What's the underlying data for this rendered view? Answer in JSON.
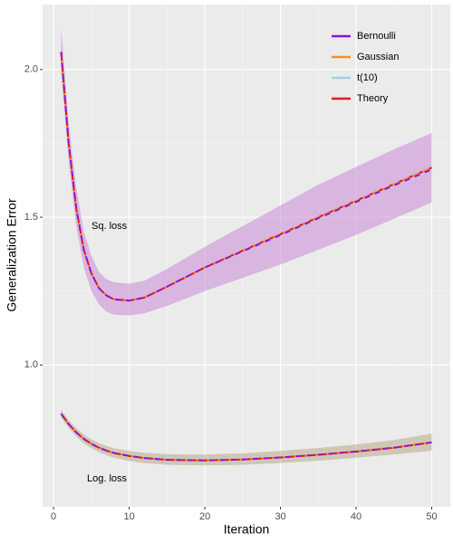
{
  "chart_data": {
    "type": "line",
    "xlabel": "Iteration",
    "ylabel": "Generalization Error",
    "xlim": [
      -1.45,
      52.45
    ],
    "ylim": [
      0.52,
      2.22
    ],
    "xticks": [
      0,
      10,
      20,
      30,
      40,
      50
    ],
    "yticks": [
      {
        "value": 1.0,
        "label": "1.0"
      },
      {
        "value": 1.5,
        "label": "1.5"
      },
      {
        "value": 2.0,
        "label": "2.0"
      }
    ],
    "grid": true,
    "legend_position": "top-right",
    "series": [
      {
        "name": "Bernoulli",
        "color": "#8a12e0",
        "dashed": true
      },
      {
        "name": "Gaussian",
        "color": "#f28e2b",
        "dashed": false
      },
      {
        "name": "t(10)",
        "color": "#9fd3e6",
        "dashed": false
      },
      {
        "name": "Theory",
        "color": "#e31a1c",
        "dashed": true
      }
    ],
    "x": [
      1,
      2,
      3,
      4,
      5,
      6,
      7,
      8,
      10,
      12,
      15,
      20,
      25,
      30,
      35,
      40,
      45,
      50
    ],
    "curves": [
      {
        "label": "Sq. loss",
        "band_color": "#c98bd6",
        "lower": [
          1.99,
          1.69,
          1.47,
          1.33,
          1.25,
          1.205,
          1.18,
          1.17,
          1.168,
          1.175,
          1.2,
          1.25,
          1.295,
          1.34,
          1.39,
          1.44,
          1.495,
          1.55
        ],
        "upper": [
          2.14,
          1.82,
          1.6,
          1.45,
          1.37,
          1.315,
          1.29,
          1.28,
          1.275,
          1.285,
          1.325,
          1.4,
          1.47,
          1.54,
          1.61,
          1.67,
          1.73,
          1.785
        ],
        "lines": [
          [
            2.06,
            1.75,
            1.53,
            1.39,
            1.31,
            1.26,
            1.235,
            1.222,
            1.218,
            1.228,
            1.265,
            1.33,
            1.385,
            1.44,
            1.497,
            1.552,
            1.608,
            1.662
          ],
          [
            2.06,
            1.75,
            1.53,
            1.39,
            1.31,
            1.26,
            1.235,
            1.222,
            1.218,
            1.228,
            1.265,
            1.33,
            1.387,
            1.443,
            1.5,
            1.556,
            1.612,
            1.668
          ],
          [
            2.06,
            1.75,
            1.53,
            1.39,
            1.31,
            1.26,
            1.235,
            1.222,
            1.218,
            1.228,
            1.265,
            1.33,
            1.387,
            1.443,
            1.5,
            1.556,
            1.612,
            1.668
          ],
          [
            2.06,
            1.75,
            1.53,
            1.39,
            1.31,
            1.26,
            1.235,
            1.222,
            1.218,
            1.228,
            1.265,
            1.33,
            1.387,
            1.443,
            1.5,
            1.556,
            1.612,
            1.668
          ]
        ]
      },
      {
        "label": "Log. loss",
        "band_color": "#b8a98a",
        "lower": [
          0.822,
          0.787,
          0.758,
          0.735,
          0.718,
          0.705,
          0.695,
          0.686,
          0.675,
          0.668,
          0.662,
          0.66,
          0.662,
          0.668,
          0.676,
          0.686,
          0.697,
          0.71
        ],
        "upper": [
          0.848,
          0.813,
          0.786,
          0.765,
          0.748,
          0.736,
          0.726,
          0.718,
          0.709,
          0.703,
          0.698,
          0.697,
          0.701,
          0.709,
          0.719,
          0.731,
          0.746,
          0.768
        ],
        "lines": [
          [
            0.835,
            0.8,
            0.772,
            0.75,
            0.733,
            0.72,
            0.71,
            0.702,
            0.692,
            0.685,
            0.679,
            0.677,
            0.68,
            0.687,
            0.696,
            0.707,
            0.72,
            0.738
          ],
          [
            0.835,
            0.8,
            0.772,
            0.75,
            0.733,
            0.72,
            0.71,
            0.702,
            0.692,
            0.685,
            0.679,
            0.677,
            0.68,
            0.687,
            0.696,
            0.707,
            0.72,
            0.738
          ],
          [
            0.835,
            0.8,
            0.772,
            0.75,
            0.733,
            0.72,
            0.71,
            0.702,
            0.692,
            0.685,
            0.679,
            0.677,
            0.68,
            0.687,
            0.696,
            0.707,
            0.72,
            0.738
          ],
          [
            0.835,
            0.8,
            0.772,
            0.75,
            0.733,
            0.72,
            0.71,
            0.702,
            0.692,
            0.685,
            0.679,
            0.677,
            0.68,
            0.687,
            0.696,
            0.707,
            0.72,
            0.738
          ]
        ]
      }
    ]
  }
}
